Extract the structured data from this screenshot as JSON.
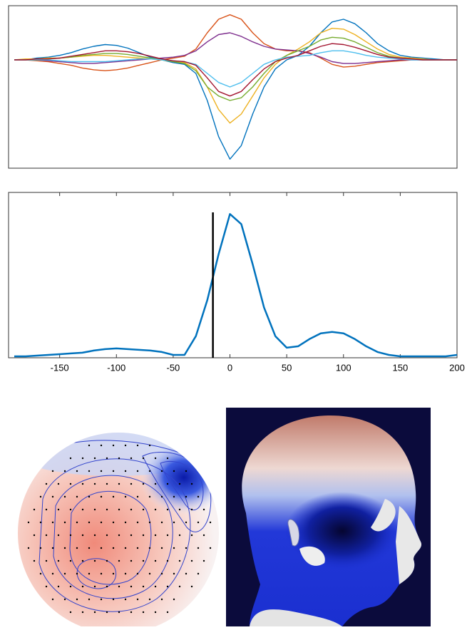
{
  "chart_data": [
    {
      "type": "line",
      "x": [
        -190,
        -180,
        -170,
        -160,
        -150,
        -140,
        -130,
        -120,
        -110,
        -100,
        -90,
        -80,
        -70,
        -60,
        -50,
        -40,
        -30,
        -20,
        -10,
        0,
        10,
        20,
        30,
        40,
        50,
        60,
        70,
        80,
        90,
        100,
        110,
        120,
        130,
        140,
        150,
        160,
        170,
        180,
        190,
        200
      ],
      "xlim": [
        -195,
        200
      ],
      "ylim": [
        -1.2,
        0.6
      ],
      "series": [
        {
          "color": "#0072bd",
          "values": [
            0,
            0,
            0.02,
            0.03,
            0.05,
            0.08,
            0.12,
            0.15,
            0.17,
            0.16,
            0.13,
            0.08,
            0.03,
            0,
            -0.03,
            -0.05,
            -0.15,
            -0.45,
            -0.85,
            -1.1,
            -0.95,
            -0.6,
            -0.3,
            -0.1,
            0,
            0.05,
            0.15,
            0.3,
            0.42,
            0.45,
            0.4,
            0.3,
            0.18,
            0.1,
            0.05,
            0.03,
            0.02,
            0.01,
            0,
            0
          ]
        },
        {
          "color": "#d95319",
          "values": [
            0,
            0,
            -0.01,
            -0.02,
            -0.04,
            -0.06,
            -0.09,
            -0.11,
            -0.12,
            -0.11,
            -0.09,
            -0.06,
            -0.03,
            0,
            0.02,
            0.04,
            0.12,
            0.3,
            0.45,
            0.5,
            0.45,
            0.3,
            0.18,
            0.12,
            0.1,
            0.1,
            0.08,
            0.02,
            -0.05,
            -0.08,
            -0.07,
            -0.05,
            -0.03,
            -0.02,
            -0.01,
            0,
            0,
            0,
            0,
            0
          ]
        },
        {
          "color": "#edb120",
          "values": [
            0,
            0.01,
            0.01,
            0.02,
            0.02,
            0.03,
            0.04,
            0.05,
            0.05,
            0.04,
            0.03,
            0.02,
            0.01,
            0,
            -0.01,
            -0.03,
            -0.1,
            -0.3,
            -0.55,
            -0.7,
            -0.6,
            -0.4,
            -0.2,
            -0.05,
            0.05,
            0.12,
            0.2,
            0.3,
            0.35,
            0.34,
            0.28,
            0.2,
            0.12,
            0.06,
            0.03,
            0.02,
            0.01,
            0,
            0,
            0
          ]
        },
        {
          "color": "#7e2f8e",
          "values": [
            0,
            0,
            0,
            -0.01,
            -0.02,
            -0.03,
            -0.04,
            -0.04,
            -0.03,
            -0.02,
            -0.01,
            0,
            0.01,
            0.02,
            0.03,
            0.05,
            0.1,
            0.2,
            0.28,
            0.3,
            0.26,
            0.2,
            0.15,
            0.12,
            0.11,
            0.1,
            0.07,
            0.03,
            -0.02,
            -0.04,
            -0.04,
            -0.03,
            -0.02,
            -0.01,
            0,
            0,
            0,
            0,
            0,
            0
          ]
        },
        {
          "color": "#77ac30",
          "values": [
            0,
            0,
            0,
            0.01,
            0.02,
            0.03,
            0.05,
            0.06,
            0.07,
            0.07,
            0.06,
            0.04,
            0.02,
            0,
            -0.02,
            -0.04,
            -0.12,
            -0.3,
            -0.4,
            -0.45,
            -0.42,
            -0.3,
            -0.15,
            -0.02,
            0.05,
            0.1,
            0.15,
            0.22,
            0.25,
            0.24,
            0.2,
            0.14,
            0.08,
            0.04,
            0.02,
            0.01,
            0,
            0,
            0,
            0
          ]
        },
        {
          "color": "#4dbeee",
          "values": [
            0,
            0,
            0,
            0,
            -0.01,
            -0.02,
            -0.02,
            -0.02,
            -0.02,
            -0.01,
            0,
            0.01,
            0.01,
            0,
            -0.01,
            -0.02,
            -0.05,
            -0.15,
            -0.25,
            -0.3,
            -0.25,
            -0.15,
            -0.05,
            0,
            0.03,
            0.04,
            0.05,
            0.08,
            0.1,
            0.1,
            0.08,
            0.05,
            0.03,
            0.02,
            0.01,
            0,
            0,
            0,
            0,
            0
          ]
        },
        {
          "color": "#a2142f",
          "values": [
            0,
            0,
            0.01,
            0.01,
            0.02,
            0.04,
            0.06,
            0.08,
            0.1,
            0.1,
            0.09,
            0.07,
            0.04,
            0.01,
            -0.01,
            -0.02,
            -0.06,
            -0.2,
            -0.35,
            -0.4,
            -0.35,
            -0.22,
            -0.1,
            -0.02,
            0.02,
            0.05,
            0.1,
            0.15,
            0.18,
            0.17,
            0.14,
            0.1,
            0.06,
            0.03,
            0.02,
            0.01,
            0,
            0,
            0,
            0
          ]
        }
      ]
    },
    {
      "type": "line",
      "x": [
        -190,
        -180,
        -170,
        -160,
        -150,
        -140,
        -130,
        -120,
        -110,
        -100,
        -90,
        -80,
        -70,
        -60,
        -50,
        -40,
        -30,
        -20,
        -10,
        0,
        10,
        20,
        30,
        40,
        50,
        60,
        70,
        80,
        90,
        100,
        110,
        120,
        130,
        140,
        150,
        160,
        170,
        180,
        190,
        200
      ],
      "xlim": [
        -195,
        200
      ],
      "ylim": [
        0,
        1.15
      ],
      "xticks": [
        -150,
        -100,
        -50,
        0,
        50,
        100,
        150,
        200
      ],
      "marker_x": -15,
      "marker_color": "#000000",
      "series": [
        {
          "color": "#0072bd",
          "values": [
            0.01,
            0.01,
            0.015,
            0.02,
            0.025,
            0.03,
            0.035,
            0.05,
            0.06,
            0.065,
            0.06,
            0.055,
            0.05,
            0.04,
            0.02,
            0.02,
            0.15,
            0.4,
            0.72,
            1.0,
            0.93,
            0.65,
            0.35,
            0.15,
            0.07,
            0.08,
            0.13,
            0.17,
            0.18,
            0.17,
            0.13,
            0.08,
            0.04,
            0.02,
            0.01,
            0.01,
            0.01,
            0.01,
            0.01,
            0.02
          ]
        }
      ]
    }
  ]
}
